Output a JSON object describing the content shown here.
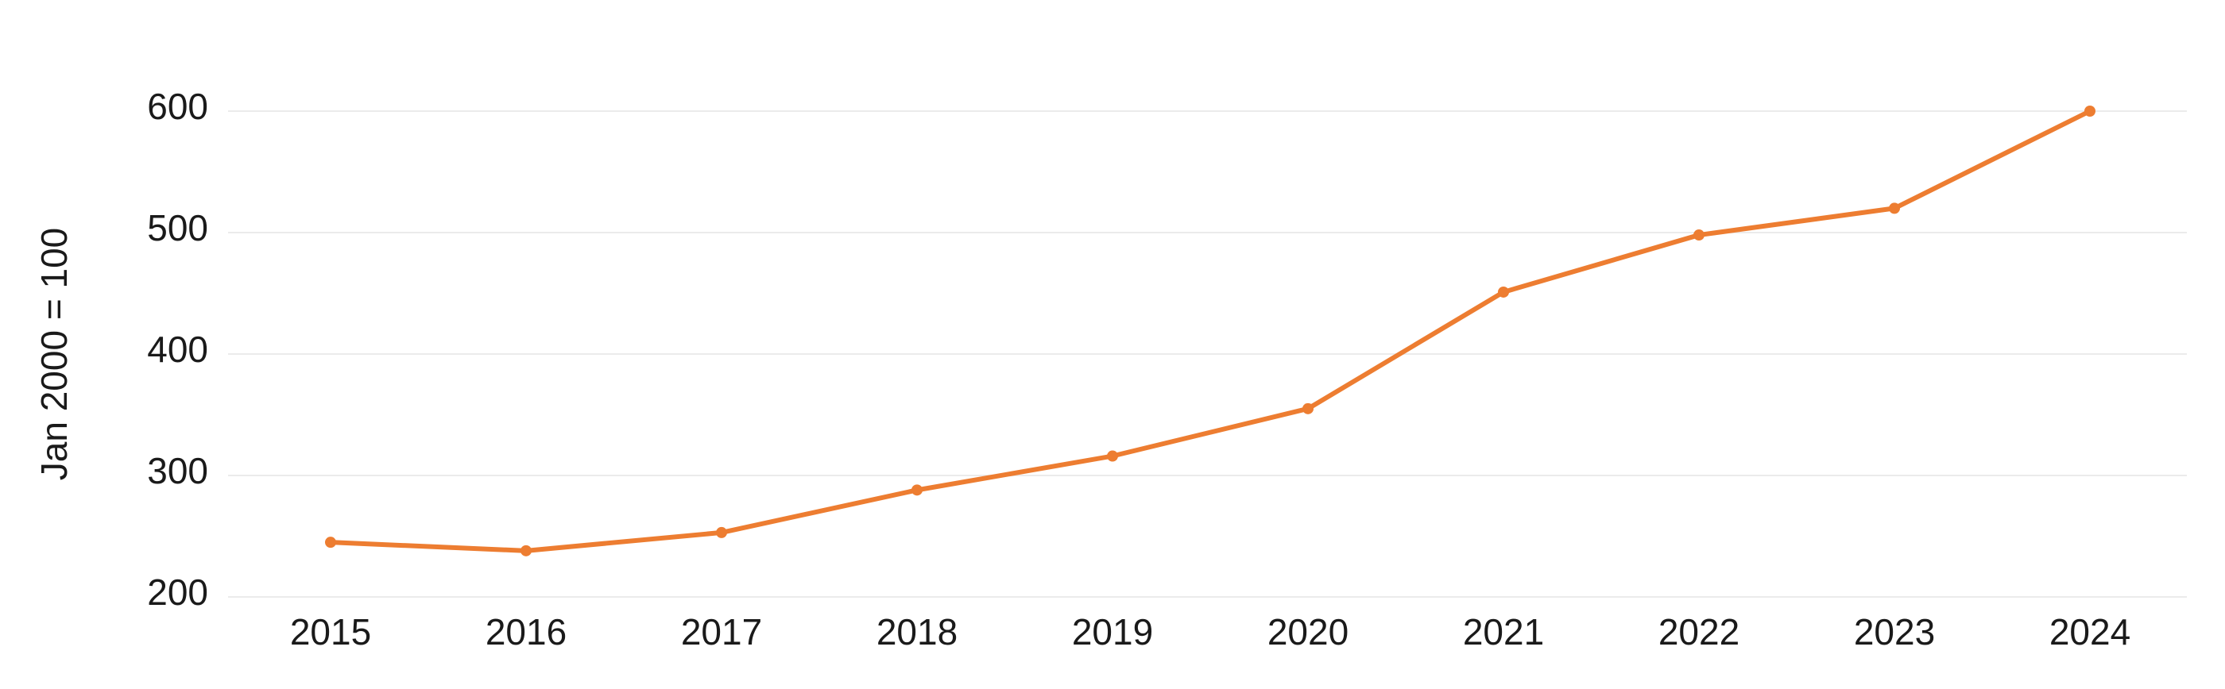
{
  "chart_data": {
    "type": "line",
    "y_label": "Jan 2000 = 100",
    "categories": [
      "2015",
      "2016",
      "2017",
      "2018",
      "2019",
      "2020",
      "2021",
      "2022",
      "2023",
      "2024"
    ],
    "series": [
      {
        "color": "#ed7d31",
        "values": [
          245,
          238,
          253,
          288,
          316,
          355,
          451,
          498,
          520,
          600
        ]
      }
    ],
    "ylim": [
      200,
      600
    ],
    "yticks": [
      200,
      300,
      400,
      500,
      600
    ],
    "grid": true
  }
}
